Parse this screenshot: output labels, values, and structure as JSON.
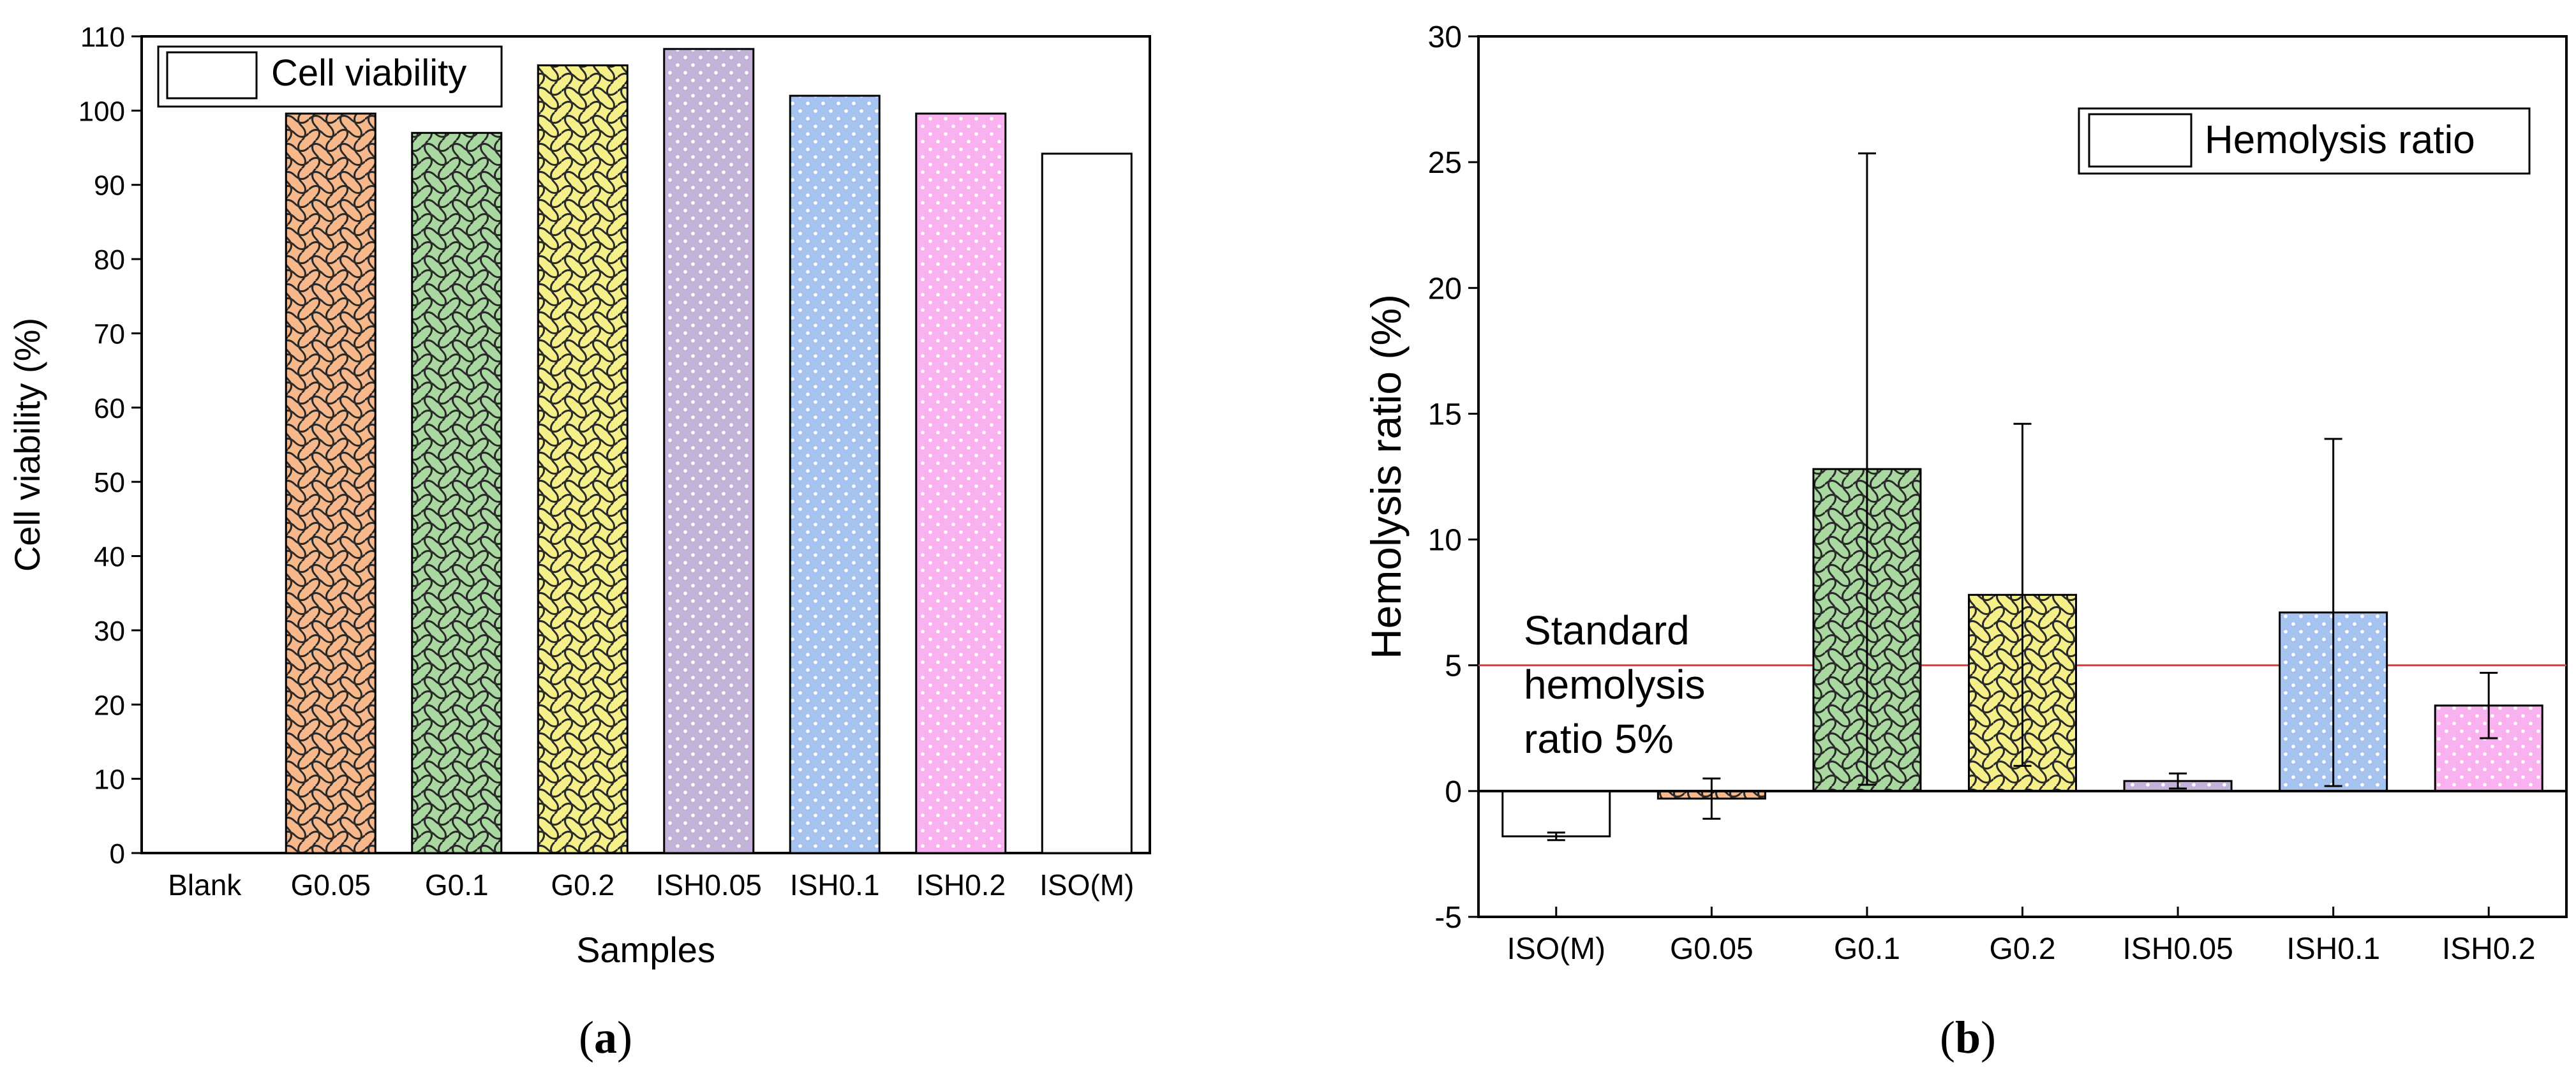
{
  "chart_data": [
    {
      "id": "a",
      "type": "bar",
      "panel_label": "a",
      "title": "",
      "xlabel": "Samples",
      "ylabel": "Cell viability (%)",
      "ylim": [
        0,
        110
      ],
      "yticks": [
        0,
        10,
        20,
        30,
        40,
        50,
        60,
        70,
        80,
        90,
        100,
        110
      ],
      "grid": false,
      "legend": {
        "label": "Cell viability",
        "position": "top-left"
      },
      "categories": [
        "Blank",
        "G0.05",
        "G0.1",
        "G0.2",
        "ISH0.05",
        "ISH0.1",
        "ISH0.2",
        "ISO(M)"
      ],
      "values": [
        0,
        99.6,
        97.0,
        106.1,
        108.3,
        102.0,
        99.6,
        94.2
      ],
      "colors": [
        "#ffffff",
        "#f7b98c",
        "#a9d9a0",
        "#f5f08a",
        "#c3b3d9",
        "#a6c3f0",
        "#f9b1ef",
        "#ffffff"
      ],
      "patterns": [
        "none",
        "weave",
        "weave",
        "weave",
        "dots",
        "dots",
        "dots",
        "none"
      ]
    },
    {
      "id": "b",
      "type": "bar",
      "panel_label": "b",
      "title": "",
      "xlabel": "",
      "ylabel": "Hemolysis ratio (%)",
      "ylim": [
        -5,
        30
      ],
      "yticks": [
        -5,
        0,
        5,
        10,
        15,
        20,
        25,
        30
      ],
      "grid": false,
      "legend": {
        "label": "Hemolysis ratio",
        "position": "top-right"
      },
      "categories": [
        "ISO(M)",
        "G0.05",
        "G0.1",
        "G0.2",
        "ISH0.05",
        "ISH0.1",
        "ISH0.2"
      ],
      "values": [
        -1.8,
        -0.3,
        12.8,
        7.8,
        0.4,
        7.1,
        3.4
      ],
      "errors": [
        0.15,
        0.8,
        12.55,
        6.8,
        0.3,
        6.9,
        1.3
      ],
      "colors": [
        "#ffffff",
        "#f7b98c",
        "#a9d9a0",
        "#f5f08a",
        "#c3b3d9",
        "#a6c3f0",
        "#f9b1ef"
      ],
      "patterns": [
        "none",
        "weave",
        "weave",
        "weave",
        "dots",
        "dots",
        "dots"
      ],
      "reference_line": {
        "value": 5,
        "color": "#e53935"
      },
      "annotation": [
        "Standard",
        "hemolysis",
        "ratio 5%"
      ]
    }
  ]
}
